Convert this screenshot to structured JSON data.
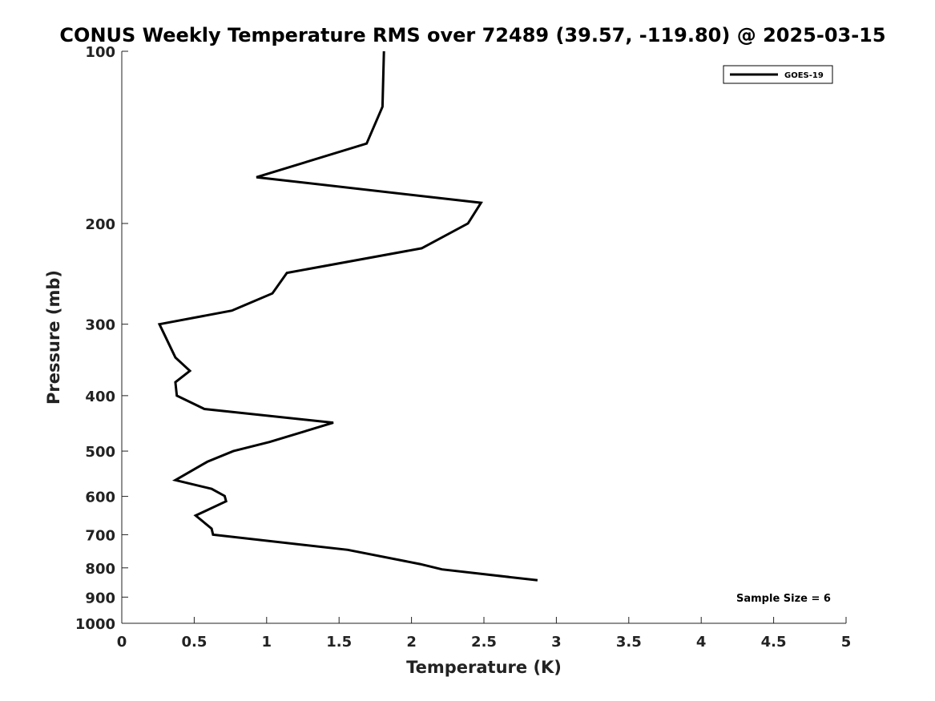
{
  "chart_data": {
    "type": "line",
    "title": "CONUS Weekly Temperature RMS over 72489 (39.57, -119.80) @ 2025-03-15",
    "xlabel": "Temperature (K)",
    "ylabel": "Pressure (mb)",
    "xlim": [
      0,
      5
    ],
    "ylim": [
      1000,
      100
    ],
    "y_scale": "log",
    "y_reversed": true,
    "x_ticks": [
      {
        "value": 0,
        "label": "0"
      },
      {
        "value": 0.5,
        "label": "0.5"
      },
      {
        "value": 1,
        "label": "1"
      },
      {
        "value": 1.5,
        "label": "1.5"
      },
      {
        "value": 2,
        "label": "2"
      },
      {
        "value": 2.5,
        "label": "2.5"
      },
      {
        "value": 3,
        "label": "3"
      },
      {
        "value": 3.5,
        "label": "3.5"
      },
      {
        "value": 4,
        "label": "4"
      },
      {
        "value": 4.5,
        "label": "4.5"
      },
      {
        "value": 5,
        "label": "5"
      }
    ],
    "y_ticks": [
      {
        "value": 100,
        "label": "100"
      },
      {
        "value": 200,
        "label": "200"
      },
      {
        "value": 300,
        "label": "300"
      },
      {
        "value": 400,
        "label": "400"
      },
      {
        "value": 500,
        "label": "500"
      },
      {
        "value": 600,
        "label": "600"
      },
      {
        "value": 700,
        "label": "700"
      },
      {
        "value": 800,
        "label": "800"
      },
      {
        "value": 900,
        "label": "900"
      },
      {
        "value": 1000,
        "label": "1000"
      }
    ],
    "grid": false,
    "legend_position": "top-right",
    "series": [
      {
        "name": "GOES-19",
        "color": "#000000",
        "points": [
          {
            "x": 1.81,
            "y": 100
          },
          {
            "x": 1.8,
            "y": 125
          },
          {
            "x": 1.69,
            "y": 145
          },
          {
            "x": 0.93,
            "y": 166
          },
          {
            "x": 2.48,
            "y": 184
          },
          {
            "x": 2.39,
            "y": 200
          },
          {
            "x": 2.07,
            "y": 221
          },
          {
            "x": 1.14,
            "y": 244
          },
          {
            "x": 1.04,
            "y": 265
          },
          {
            "x": 0.76,
            "y": 284
          },
          {
            "x": 0.26,
            "y": 300
          },
          {
            "x": 0.37,
            "y": 343
          },
          {
            "x": 0.47,
            "y": 362
          },
          {
            "x": 0.37,
            "y": 379
          },
          {
            "x": 0.38,
            "y": 400
          },
          {
            "x": 0.57,
            "y": 422
          },
          {
            "x": 1.46,
            "y": 446
          },
          {
            "x": 1.02,
            "y": 482
          },
          {
            "x": 0.77,
            "y": 500
          },
          {
            "x": 0.59,
            "y": 522
          },
          {
            "x": 0.37,
            "y": 562
          },
          {
            "x": 0.62,
            "y": 582
          },
          {
            "x": 0.71,
            "y": 599
          },
          {
            "x": 0.72,
            "y": 612
          },
          {
            "x": 0.51,
            "y": 648
          },
          {
            "x": 0.62,
            "y": 683
          },
          {
            "x": 0.63,
            "y": 700
          },
          {
            "x": 1.56,
            "y": 744
          },
          {
            "x": 2.06,
            "y": 788
          },
          {
            "x": 2.21,
            "y": 805
          },
          {
            "x": 2.87,
            "y": 841
          }
        ]
      }
    ],
    "annotations": [
      {
        "text": "Sample Size = 6",
        "position": "bottom-right"
      }
    ]
  }
}
